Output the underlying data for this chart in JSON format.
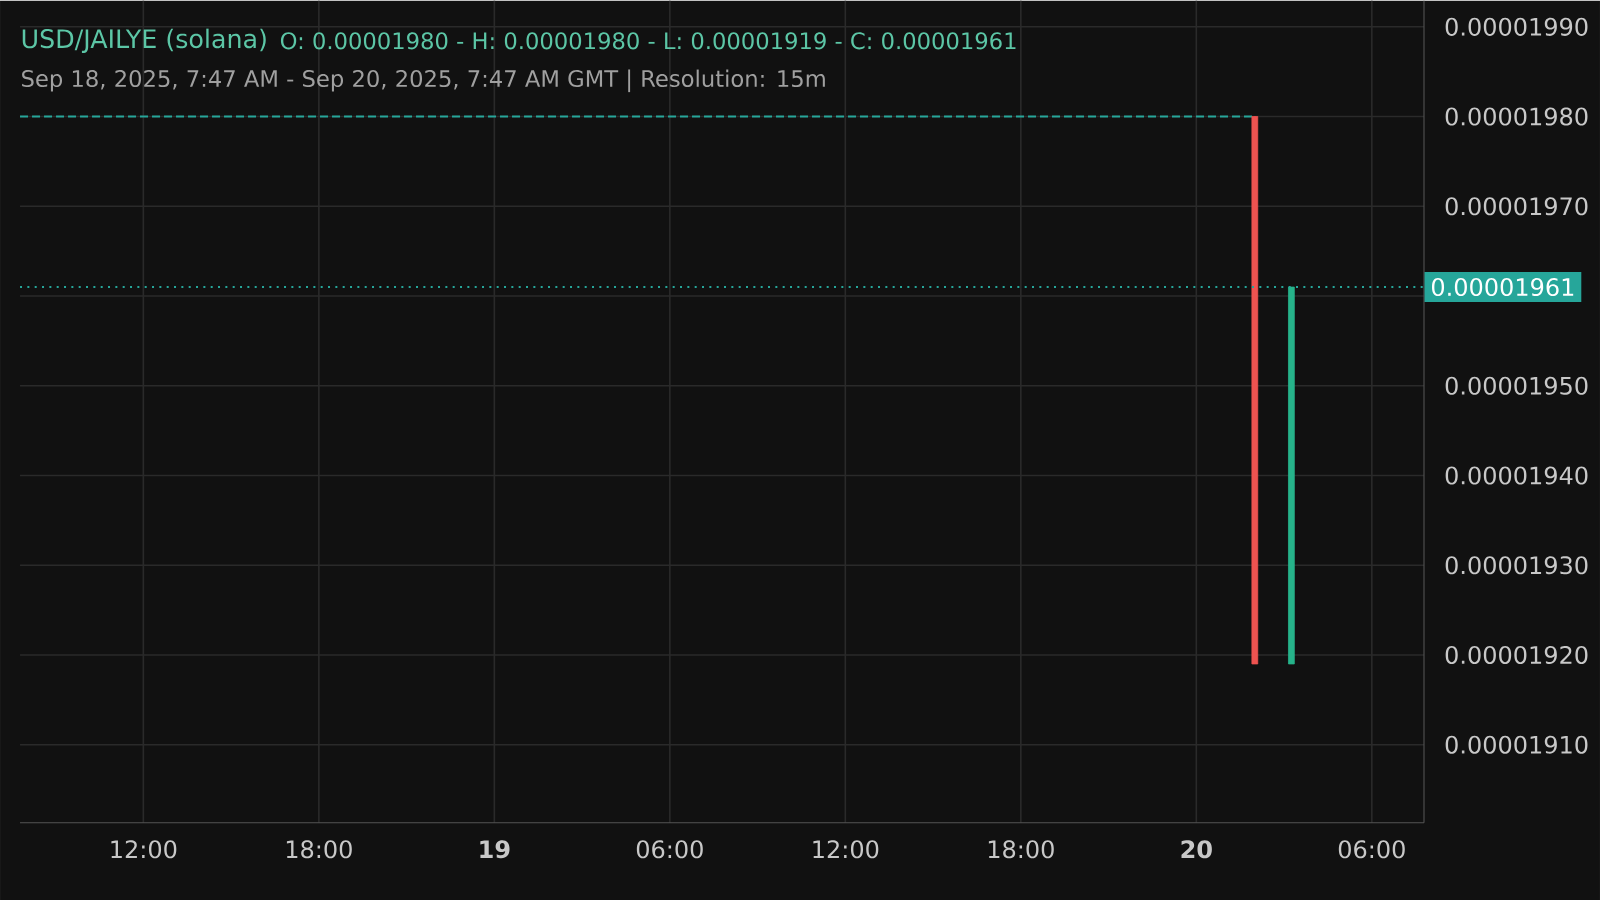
{
  "chart_data": {
    "type": "candlestick",
    "title": "USD/JAILYE (solana)",
    "subtitle": "O: 0.00001980 - H: 0.00001980 - L: 0.00001919 - C: 0.00001961",
    "annotations": [
      "Sep 18, 2025, 7:47 AM - Sep 20, 2025, 7:47 AM GMT   |   Resolution: 15m"
    ],
    "series": [
      {
        "type": "line",
        "x": [
          "2025-09-18T07:47",
          "2025-09-20T02:00"
        ],
        "values": [
          1.98e-05,
          1.98e-05
        ],
        "color": "#26a69a",
        "line_style": "dashed"
      },
      {
        "x": [
          "2025-09-20T02:00",
          "2025-09-20T03:15"
        ],
        "ohlc": [
          [
            1.98e-05,
            1.98e-05,
            1.919e-05,
            1.919e-05
          ],
          [
            1.919e-05,
            1.961e-05,
            1.919e-05,
            1.961e-05
          ]
        ],
        "colors": [
          "#ef5350",
          "#26b38a"
        ]
      }
    ],
    "xlim": [
      "2025-09-18T07:47",
      "2025-09-20T07:47"
    ],
    "xticks": [
      {
        "value": "2025-09-18T12:00",
        "label": "12:00"
      },
      {
        "value": "2025-09-18T18:00",
        "label": "18:00"
      },
      {
        "value": "2025-09-19T00:00",
        "label": "**19**"
      },
      {
        "value": "2025-09-19T06:00",
        "label": "06:00"
      },
      {
        "value": "2025-09-19T12:00",
        "label": "12:00"
      },
      {
        "value": "2025-09-19T18:00",
        "label": "18:00"
      },
      {
        "value": "2025-09-20T00:00",
        "label": "**20**"
      },
      {
        "value": "2025-09-20T06:00",
        "label": "06:00"
      }
    ],
    "ylim": [
      1.9013e-05,
      1.9929e-05
    ],
    "yticks": [
      {
        "value": 1.91e-05,
        "label": "0.00001910"
      },
      {
        "value": 1.92e-05,
        "label": "0.00001920"
      },
      {
        "value": 1.93e-05,
        "label": "0.00001930"
      },
      {
        "value": 1.94e-05,
        "label": "0.00001940"
      },
      {
        "value": 1.95e-05,
        "label": "0.00001950"
      },
      {
        "value": 1.96e-05,
        "label": null
      },
      {
        "value": 1.97e-05,
        "label": "0.00001970"
      },
      {
        "value": 1.98e-05,
        "label": "0.00001980"
      },
      {
        "value": 1.99e-05,
        "label": "0.00001990"
      }
    ],
    "ref_lines": [
      {
        "axis": "y",
        "value": 1.961e-05,
        "label": "0.00001961",
        "color": "#26a69a",
        "line_style": "dotted"
      }
    ],
    "grid": true,
    "marker": "none"
  }
}
